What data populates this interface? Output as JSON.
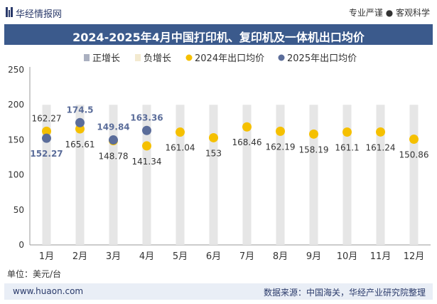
{
  "header": {
    "brand": "华经情报网",
    "tagline": "专业严谨 ● 客观科学"
  },
  "colors": {
    "title_bg": "#3b5a8c",
    "series_2024": "#f5c000",
    "series_2025": "#5b6d9a",
    "pos_growth": "#aab0c0",
    "neg_growth": "#f3ead0",
    "bar_bg": "#e6e6e6"
  },
  "footer": {
    "left": "www.huaon.com",
    "right": "数据来源：中国海关，华经产业研究院整理"
  },
  "unit": "单位：美元/台",
  "chart_data": {
    "type": "scatter",
    "title": "2024-2025年4月中国打印机、复印机及一体机出口均价",
    "categories": [
      "1月",
      "2月",
      "3月",
      "4月",
      "5月",
      "6月",
      "7月",
      "8月",
      "9月",
      "10月",
      "11月",
      "12月"
    ],
    "ylim": [
      0,
      250
    ],
    "yticks": [
      "0",
      "50",
      "100",
      "150",
      "200",
      "250"
    ],
    "legend": [
      "正增长",
      "负增长",
      "2024年出口均价",
      "2025年出口均价"
    ],
    "legend_position": "top",
    "series": [
      {
        "name": "2024年出口均价",
        "values": [
          162.27,
          165.61,
          148.78,
          141.34,
          161.04,
          153,
          168.46,
          162.19,
          158.19,
          161.1,
          161.24,
          150.86
        ]
      },
      {
        "name": "2025年出口均价",
        "values": [
          152.27,
          174.5,
          149.84,
          163.36
        ]
      }
    ]
  }
}
